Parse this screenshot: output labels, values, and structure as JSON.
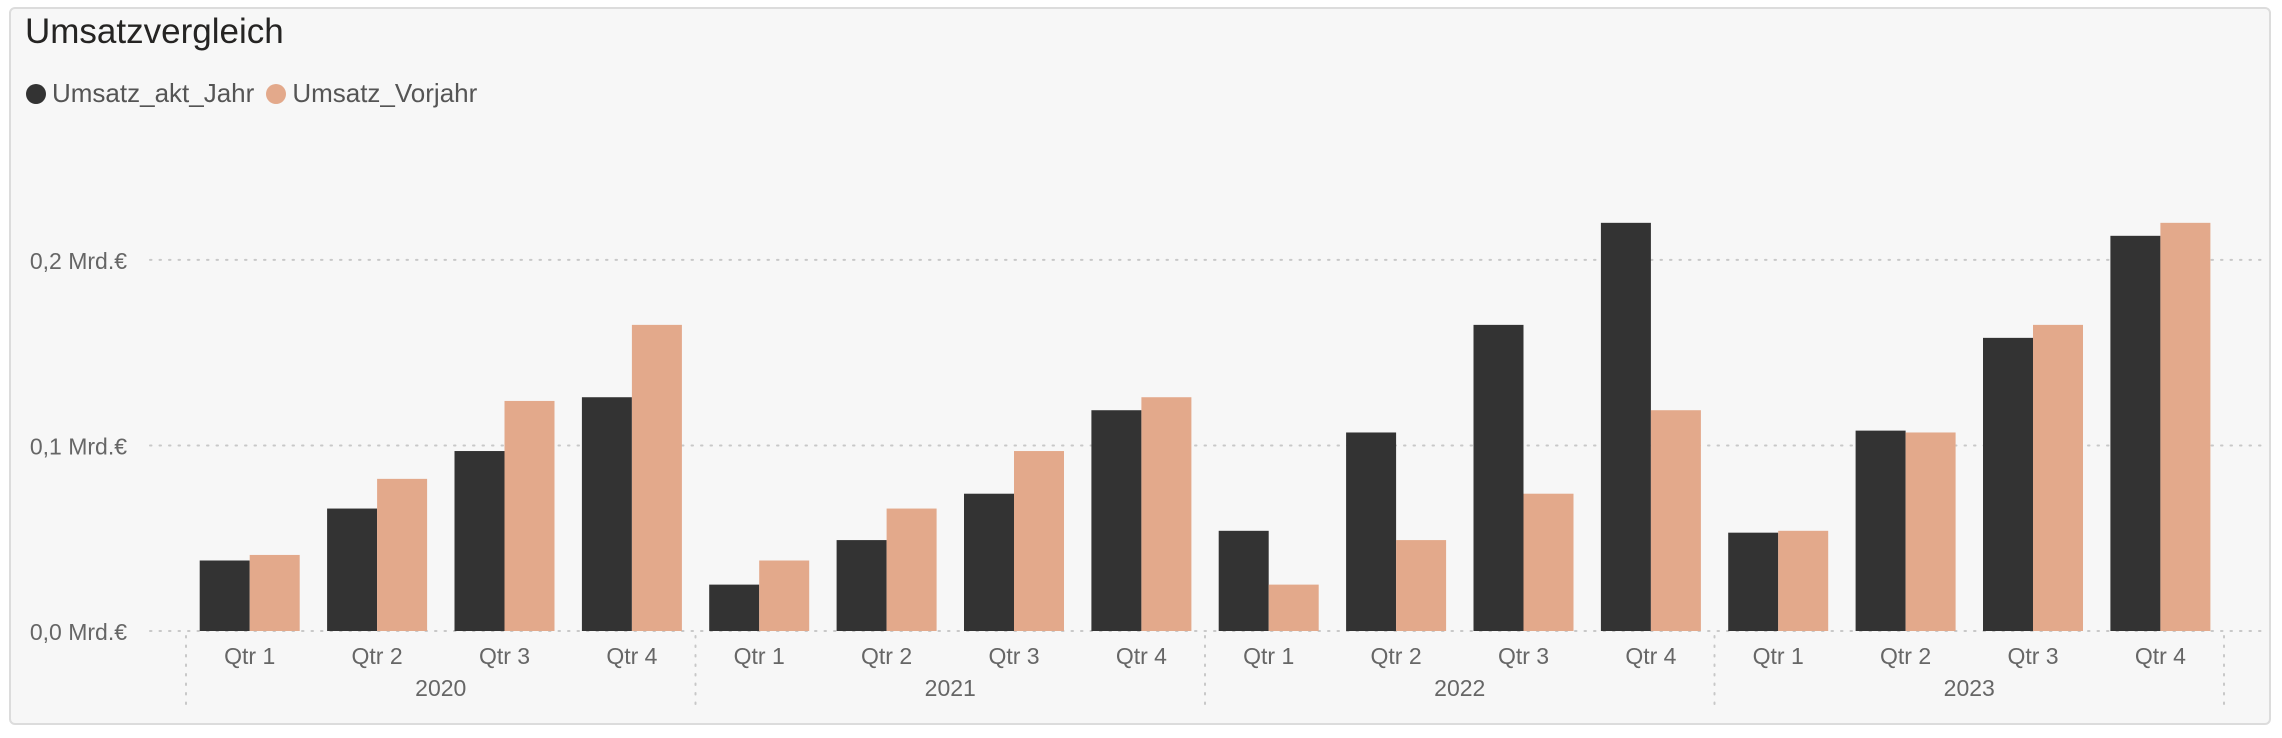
{
  "visual": {
    "title": "Umsatzvergleich"
  },
  "colors": {
    "series_current": "#333333",
    "series_previous": "#e3a98b",
    "gridline": "#c8c8c8",
    "axis_text": "#666666"
  },
  "chart_data": {
    "type": "bar",
    "title": "Umsatzvergleich",
    "xlabel": "",
    "ylabel": "",
    "ylim": [
      0,
      0.235
    ],
    "y_unit": "Mrd.€",
    "y_ticks": [
      {
        "value": 0.0,
        "label": "0,0 Mrd.€"
      },
      {
        "value": 0.1,
        "label": "0,1 Mrd.€"
      },
      {
        "value": 0.2,
        "label": "0,2 Mrd.€"
      }
    ],
    "grid": true,
    "legend_position": "top-left",
    "groups": [
      {
        "label": "2020",
        "categories": [
          "Qtr 1",
          "Qtr 2",
          "Qtr 3",
          "Qtr 4"
        ]
      },
      {
        "label": "2021",
        "categories": [
          "Qtr 1",
          "Qtr 2",
          "Qtr 3",
          "Qtr 4"
        ]
      },
      {
        "label": "2022",
        "categories": [
          "Qtr 1",
          "Qtr 2",
          "Qtr 3",
          "Qtr 4"
        ]
      },
      {
        "label": "2023",
        "categories": [
          "Qtr 1",
          "Qtr 2",
          "Qtr 3",
          "Qtr 4"
        ]
      }
    ],
    "series": [
      {
        "name": "Umsatz_akt_Jahr",
        "color": "#333333",
        "values": [
          0.038,
          0.066,
          0.097,
          0.126,
          0.025,
          0.049,
          0.074,
          0.119,
          0.054,
          0.107,
          0.165,
          0.22,
          0.053,
          0.108,
          0.158,
          0.213
        ]
      },
      {
        "name": "Umsatz_Vorjahr",
        "color": "#e3a98b",
        "values": [
          0.041,
          0.082,
          0.124,
          0.165,
          0.038,
          0.066,
          0.097,
          0.126,
          0.025,
          0.049,
          0.074,
          0.119,
          0.054,
          0.107,
          0.165,
          0.22
        ]
      }
    ]
  }
}
